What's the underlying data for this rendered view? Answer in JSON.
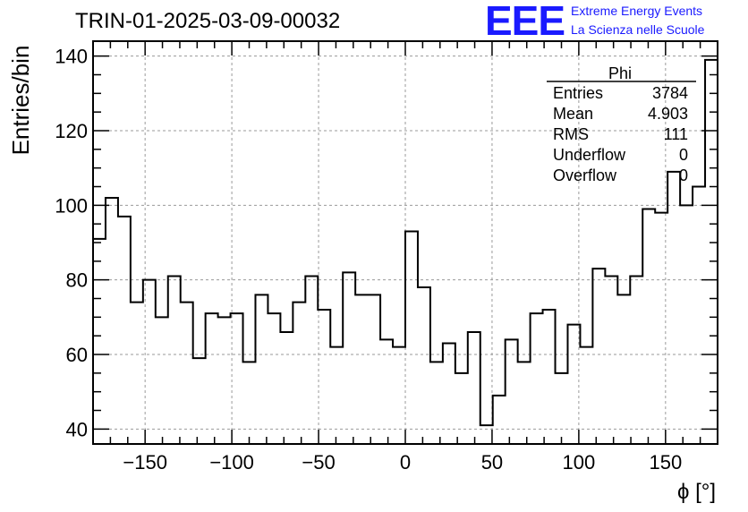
{
  "header": {
    "run_title": "TRIN-01-2025-03-09-00032",
    "logo_text": "EEE",
    "logo_line1": "Extreme Energy Events",
    "logo_line2": "La Scienza nelle Scuole"
  },
  "stats_box": {
    "title": "Phi",
    "rows": [
      {
        "label": "Entries",
        "value": "3784"
      },
      {
        "label": "Mean",
        "value": "4.903"
      },
      {
        "label": "RMS",
        "value": "111"
      },
      {
        "label": "Underflow",
        "value": "0"
      },
      {
        "label": "Overflow",
        "value": "0"
      }
    ]
  },
  "chart_data": {
    "type": "bar",
    "histogram": true,
    "title": "TRIN-01-2025-03-09-00032",
    "xlabel": "ϕ [°]",
    "ylabel": "Entries/bin",
    "xlim": [
      -180,
      180
    ],
    "ylim": [
      36,
      144
    ],
    "bin_width": 7.2,
    "xticks": [
      -150,
      -100,
      -50,
      0,
      50,
      100,
      150
    ],
    "yticks": [
      40,
      60,
      80,
      100,
      120,
      140
    ],
    "xtick_labels": [
      "−150",
      "−100",
      "−50",
      "0",
      "50",
      "100",
      "150"
    ],
    "ytick_labels": [
      "40",
      "60",
      "80",
      "100",
      "120",
      "140"
    ],
    "grid": true,
    "series": [
      {
        "name": "Phi",
        "values": [
          91,
          102,
          97,
          74,
          80,
          70,
          81,
          74,
          59,
          71,
          70,
          71,
          58,
          76,
          71,
          66,
          74,
          81,
          72,
          62,
          82,
          76,
          76,
          64,
          62,
          93,
          78,
          58,
          63,
          55,
          66,
          41,
          49,
          64,
          58,
          71,
          72,
          55,
          68,
          62,
          83,
          81,
          76,
          81,
          99,
          98,
          109,
          100,
          105,
          139
        ]
      }
    ]
  }
}
